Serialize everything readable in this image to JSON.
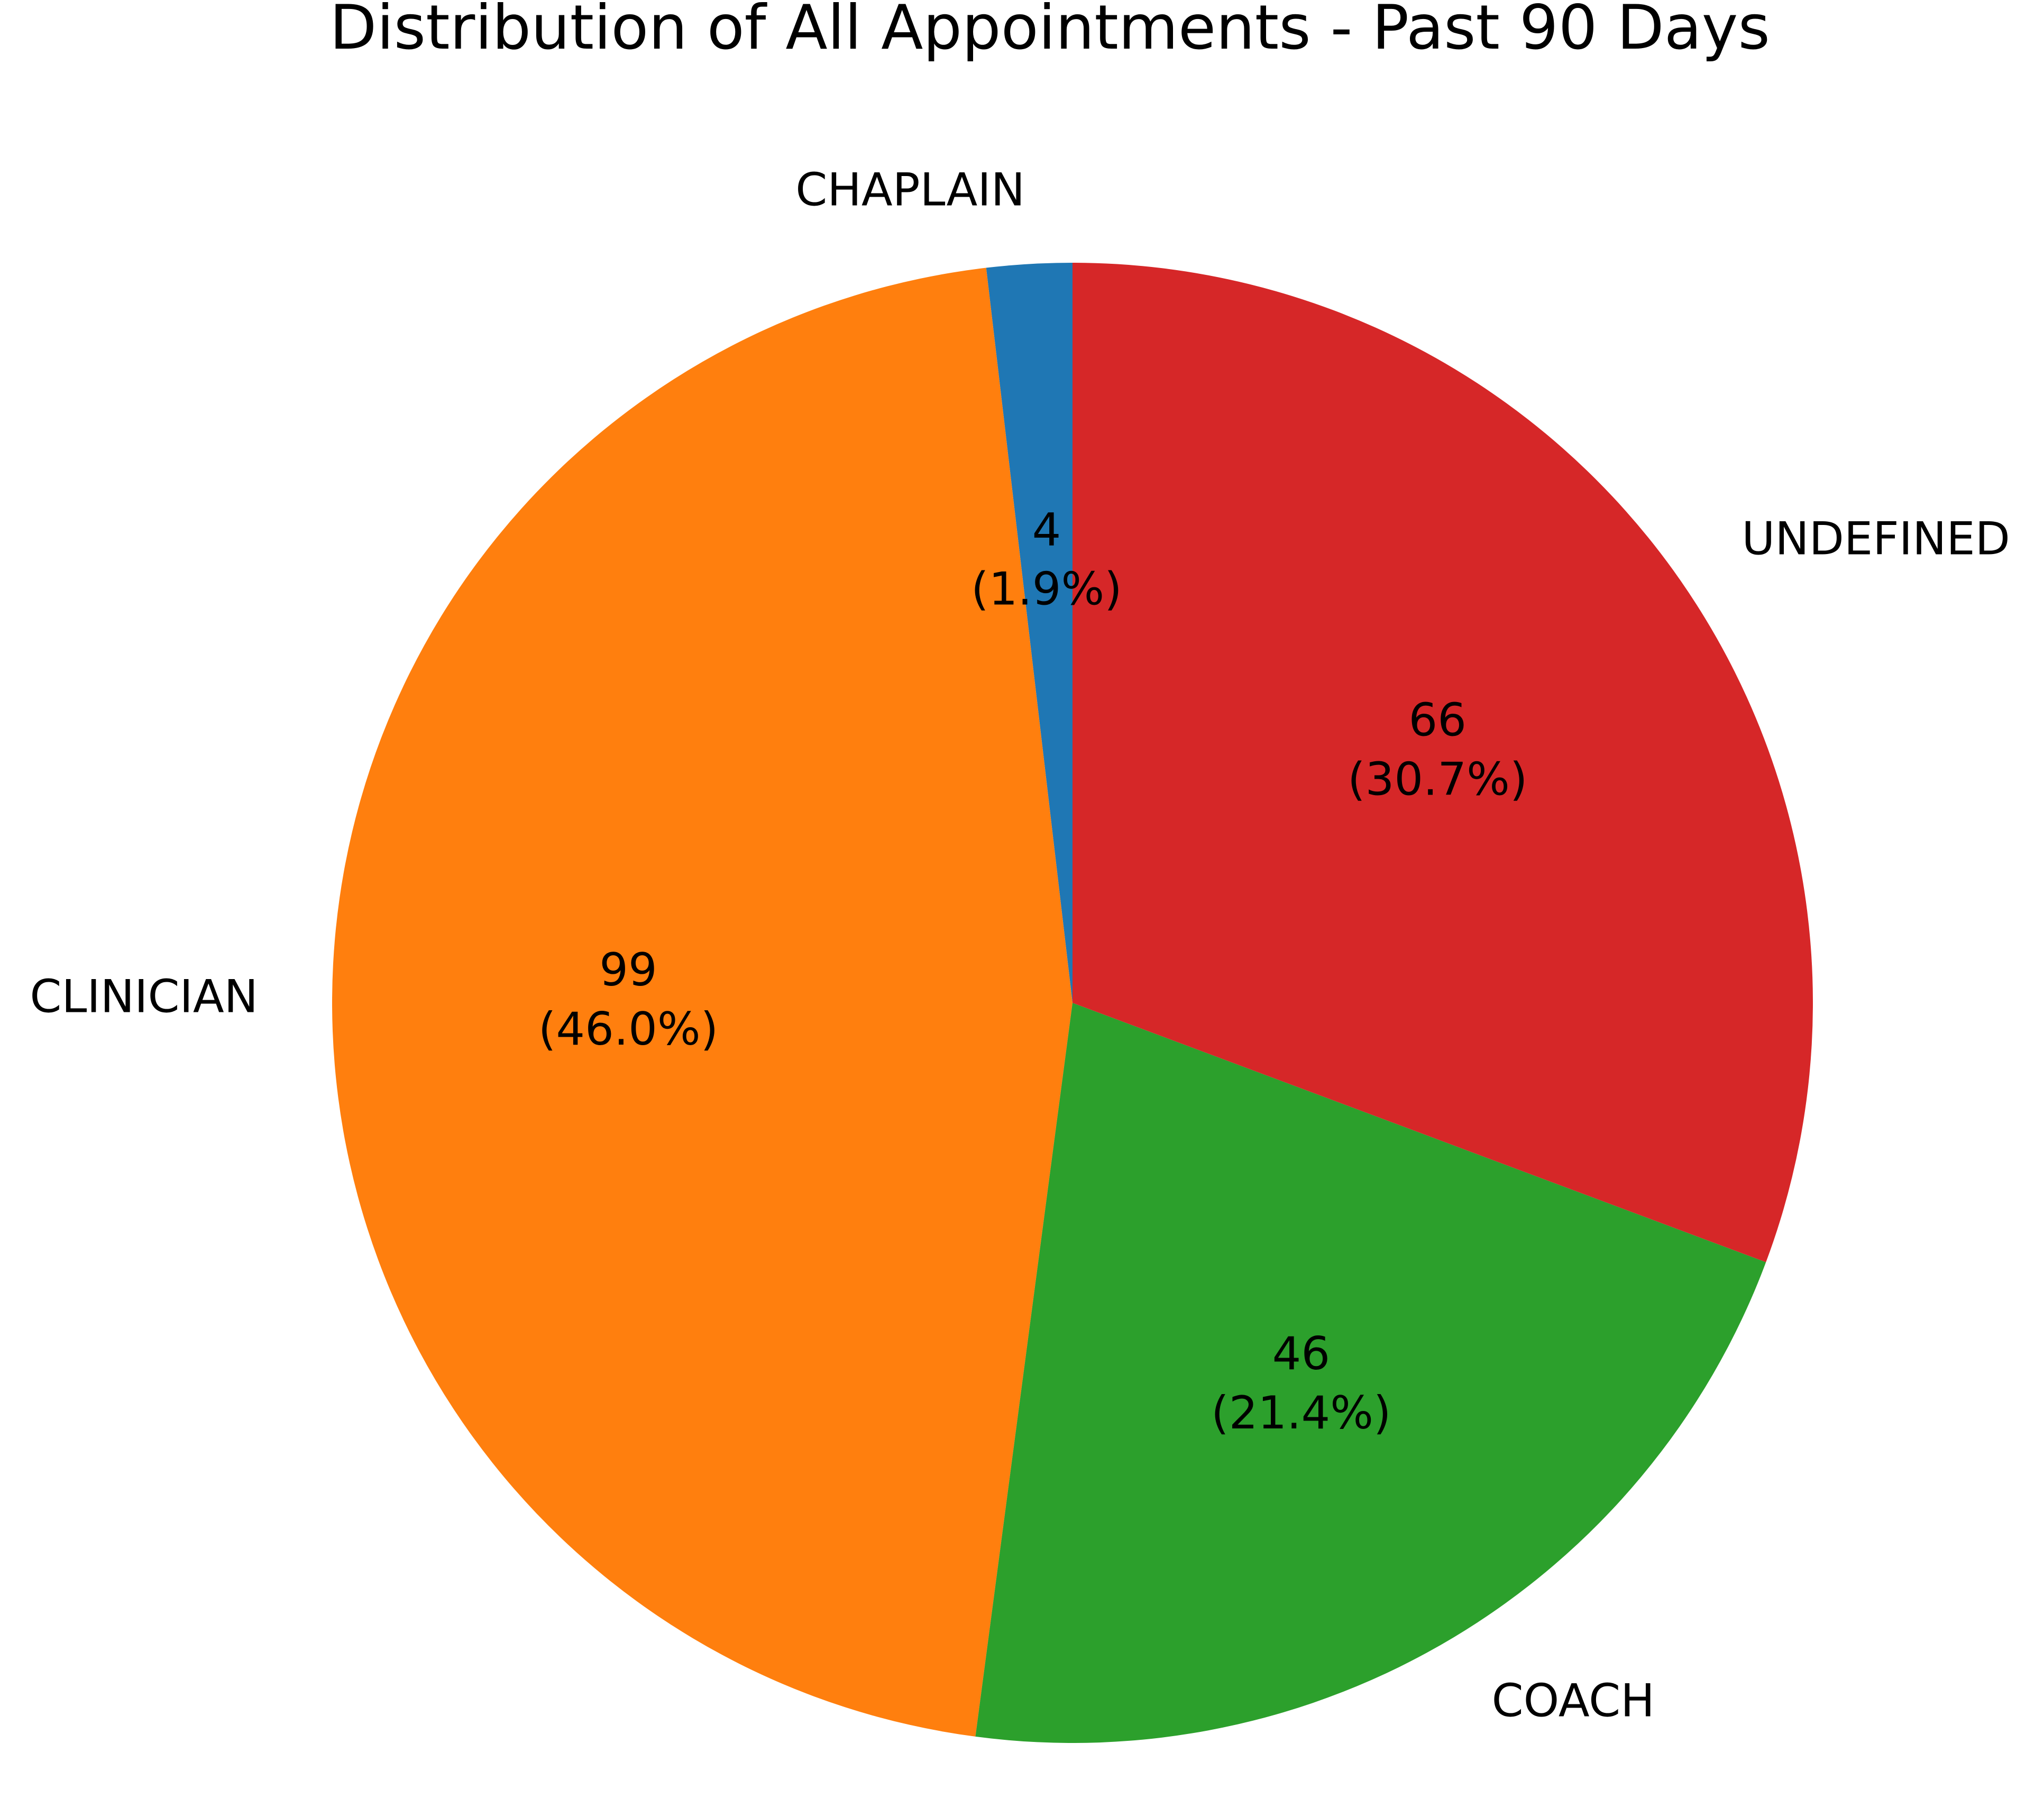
{
  "chart_data": {
    "type": "pie",
    "title": "Distribution of All Appointments - Past 90 Days",
    "start_angle": 90,
    "direction": "counterclockwise",
    "slices": [
      {
        "label": "CHAPLAIN",
        "value": 4,
        "percent_label": "(1.9%)",
        "color": "#1f77b4"
      },
      {
        "label": "CLINICIAN",
        "value": 99,
        "percent_label": "(46.0%)",
        "color": "#ff7f0e"
      },
      {
        "label": "COACH",
        "value": 46,
        "percent_label": "(21.4%)",
        "color": "#2ca02c"
      },
      {
        "label": "UNDEFINED",
        "value": 66,
        "percent_label": "(30.7%)",
        "color": "#d62728"
      }
    ]
  }
}
